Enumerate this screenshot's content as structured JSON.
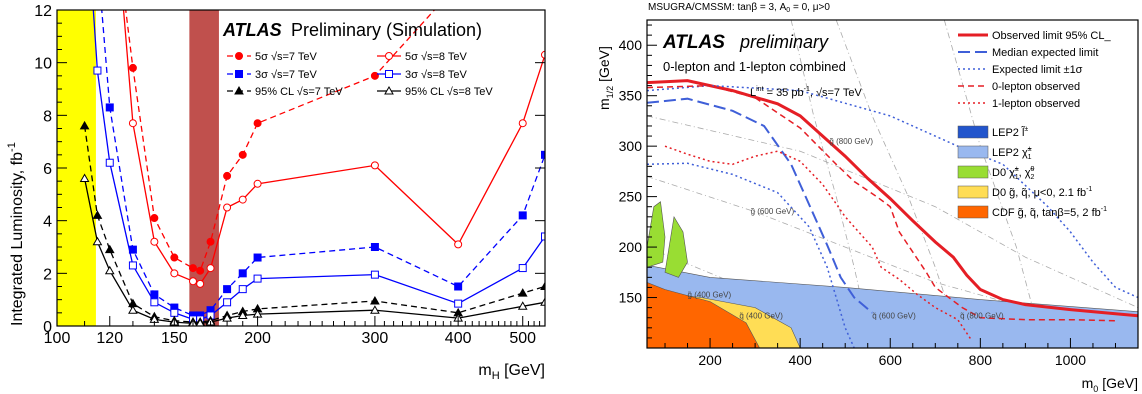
{
  "chart_data": [
    {
      "type": "line",
      "log_x": true,
      "title": "ATLAS",
      "title_suffix": "Preliminary (Simulation)",
      "xlabel": "m",
      "xlabel_sub": "H",
      "xlabel_unit": "[GeV]",
      "ylabel": "Integrated Luminosity, fb",
      "ylabel_sup": "-1",
      "xlim": [
        100,
        540
      ],
      "ylim": [
        0,
        12
      ],
      "x_ticks": [
        100,
        120,
        150,
        200,
        300,
        400,
        500
      ],
      "y_ticks": [
        0,
        2,
        4,
        6,
        8,
        10,
        12
      ],
      "shaded_regions": [
        {
          "from": 100,
          "to": 114.4,
          "color": "#ffff00"
        },
        {
          "from": 158,
          "to": 175,
          "color": "#c0504d"
        }
      ],
      "series": [
        {
          "name": "5σ √s=7 TeV",
          "color": "#ff0000",
          "dash": "dash",
          "marker": "circle-filled",
          "points": [
            [
              124,
              14
            ],
            [
              130,
              9.8
            ],
            [
              140,
              4.1
            ],
            [
              150,
              2.6
            ],
            [
              160,
              2.2
            ],
            [
              164,
              2.1
            ],
            [
              170,
              3.2
            ],
            [
              180,
              5.7
            ],
            [
              190,
              6.5
            ],
            [
              200,
              7.7
            ],
            [
              300,
              9.5
            ],
            [
              400,
              13
            ],
            [
              500,
              14
            ]
          ]
        },
        {
          "name": "5σ √s=8 TeV",
          "color": "#ff0000",
          "dash": "solid",
          "marker": "circle-open",
          "points": [
            [
              124,
              14
            ],
            [
              130,
              7.7
            ],
            [
              140,
              3.2
            ],
            [
              150,
              2.0
            ],
            [
              160,
              1.7
            ],
            [
              164,
              1.6
            ],
            [
              170,
              2.2
            ],
            [
              180,
              4.5
            ],
            [
              190,
              4.8
            ],
            [
              200,
              5.4
            ],
            [
              300,
              6.1
            ],
            [
              400,
              3.1
            ],
            [
              500,
              7.7
            ],
            [
              540,
              10.3
            ]
          ]
        },
        {
          "name": "3σ √s=7 TeV",
          "color": "#0000ff",
          "dash": "dash",
          "marker": "square-filled",
          "points": [
            [
              115,
              14
            ],
            [
              120,
              8.3
            ],
            [
              130,
              2.9
            ],
            [
              140,
              1.2
            ],
            [
              150,
              0.7
            ],
            [
              160,
              0.4
            ],
            [
              164,
              0.4
            ],
            [
              170,
              0.6
            ],
            [
              180,
              1.4
            ],
            [
              190,
              2.0
            ],
            [
              200,
              2.6
            ],
            [
              300,
              3.0
            ],
            [
              400,
              1.5
            ],
            [
              500,
              4.2
            ],
            [
              540,
              6.5
            ]
          ]
        },
        {
          "name": "3σ √s=8 TeV",
          "color": "#0000ff",
          "dash": "solid",
          "marker": "square-open",
          "points": [
            [
              112,
              14
            ],
            [
              115,
              9.7
            ],
            [
              120,
              6.2
            ],
            [
              130,
              2.3
            ],
            [
              140,
              0.9
            ],
            [
              150,
              0.5
            ],
            [
              160,
              0.25
            ],
            [
              164,
              0.25
            ],
            [
              170,
              0.4
            ],
            [
              180,
              0.9
            ],
            [
              190,
              1.4
            ],
            [
              200,
              1.8
            ],
            [
              300,
              1.95
            ],
            [
              400,
              0.85
            ],
            [
              500,
              2.2
            ],
            [
              540,
              3.4
            ]
          ]
        },
        {
          "name": "95% CL √s=7 TeV",
          "color": "#000000",
          "dash": "dash",
          "marker": "triangle-filled",
          "points": [
            [
              110,
              7.6
            ],
            [
              115,
              4.2
            ],
            [
              120,
              2.9
            ],
            [
              130,
              0.85
            ],
            [
              140,
              0.35
            ],
            [
              150,
              0.2
            ],
            [
              160,
              0.15
            ],
            [
              164,
              0.15
            ],
            [
              170,
              0.2
            ],
            [
              180,
              0.4
            ],
            [
              190,
              0.55
            ],
            [
              200,
              0.65
            ],
            [
              300,
              0.95
            ],
            [
              400,
              0.5
            ],
            [
              500,
              1.25
            ],
            [
              540,
              1.5
            ]
          ]
        },
        {
          "name": "95% CL √s=8 TeV",
          "color": "#000000",
          "dash": "solid",
          "marker": "triangle-open",
          "points": [
            [
              110,
              5.6
            ],
            [
              115,
              3.2
            ],
            [
              120,
              2.1
            ],
            [
              130,
              0.6
            ],
            [
              140,
              0.25
            ],
            [
              150,
              0.15
            ],
            [
              160,
              0.1
            ],
            [
              164,
              0.1
            ],
            [
              170,
              0.15
            ],
            [
              180,
              0.3
            ],
            [
              190,
              0.4
            ],
            [
              200,
              0.45
            ],
            [
              300,
              0.6
            ],
            [
              400,
              0.3
            ],
            [
              500,
              0.75
            ],
            [
              540,
              0.9
            ]
          ]
        }
      ]
    },
    {
      "type": "line",
      "title": "ATLAS",
      "title_suffix": "preliminary",
      "header": "MSUGRA/CMSSM: tanβ = 3, A",
      "header_sub": "0",
      "header_rest": " = 0, μ>0",
      "subtitle": "0-lepton and 1-lepton combined",
      "lumi_text_a": "L",
      "lumi_sup": "int",
      "lumi_text_b": " = 35 pb",
      "lumi_sup2": "-1",
      "lumi_text_c": ", √s=7 TeV",
      "xlabel": "m",
      "xlabel_sub": "0",
      "xlabel_unit": "[GeV]",
      "ylabel": "m",
      "ylabel_sub": "1/2",
      "ylabel_unit": "[GeV]",
      "xlim": [
        60,
        1150
      ],
      "ylim": [
        100,
        425
      ],
      "x_ticks": [
        200,
        400,
        600,
        800,
        1000
      ],
      "y_ticks": [
        150,
        200,
        250,
        300,
        350,
        400
      ],
      "contour_labels": [
        {
          "text": "g̃ (800 GeV)",
          "x": 465,
          "y": 302
        },
        {
          "text": "g̃ (600 GeV)",
          "x": 290,
          "y": 233
        },
        {
          "text": "g̃ (400 GeV)",
          "x": 150,
          "y": 150
        },
        {
          "text": "q̃ (400 GeV)",
          "x": 265,
          "y": 129
        },
        {
          "text": "q̃ (600 GeV)",
          "x": 560,
          "y": 129
        },
        {
          "text": "q̃ (800 GeV)",
          "x": 755,
          "y": 129
        }
      ],
      "legend_lines": [
        {
          "label": "Observed limit 95% CL_",
          "color": "#e51e25",
          "dash": "solid",
          "width": 3
        },
        {
          "label": "Median expected limit",
          "color": "#3f5fd8",
          "dash": "longdash",
          "width": 2
        },
        {
          "label": "Expected limit ±1σ",
          "color": "#3f5fd8",
          "dash": "dot",
          "width": 1.5
        },
        {
          "label": "0-lepton observed",
          "color": "#e51e25",
          "dash": "dash",
          "width": 1.5
        },
        {
          "label": "1-lepton observed",
          "color": "#e51e25",
          "dash": "dot",
          "width": 1.5
        }
      ],
      "legend_boxes": [
        {
          "label": "LEP2 l̃",
          "sup": "±",
          "color": "#2255cc"
        },
        {
          "label": "LEP2 χ̃",
          "sup": "±",
          "sub": "1",
          "color": "#99b8ef"
        },
        {
          "label": "D0 χ̃",
          "sup": "±",
          "sub": "1",
          "extra": ", χ̃",
          "extra_sup": "0",
          "extra_sub": "2",
          "color": "#99dd33"
        },
        {
          "label": "D0 g̃, q̃, μ<0, 2.1 fb",
          "sup": "-1",
          "color": "#ffdd55"
        },
        {
          "label": "CDF g̃, q̃, tanβ=5, 2 fb",
          "sup": "-1",
          "color": "#ff6600"
        }
      ],
      "series": [
        {
          "name": "Observed limit 95% CL_",
          "color": "#e51e25",
          "width": 3,
          "dash": "solid",
          "points": [
            [
              60,
              363
            ],
            [
              150,
              365
            ],
            [
              250,
              355
            ],
            [
              350,
              342
            ],
            [
              400,
              330
            ],
            [
              450,
              310
            ],
            [
              500,
              290
            ],
            [
              550,
              268
            ],
            [
              600,
              248
            ],
            [
              650,
              226
            ],
            [
              700,
              205
            ],
            [
              740,
              190
            ],
            [
              770,
              172
            ],
            [
              800,
              158
            ],
            [
              850,
              148
            ],
            [
              900,
              143
            ],
            [
              1000,
              138
            ],
            [
              1100,
              134
            ],
            [
              1150,
              132
            ]
          ]
        },
        {
          "name": "Median expected limit",
          "color": "#3f5fd8",
          "width": 2,
          "dash": "longdash",
          "points": [
            [
              60,
              343
            ],
            [
              150,
              347
            ],
            [
              250,
              335
            ],
            [
              320,
              320
            ],
            [
              380,
              282
            ],
            [
              410,
              252
            ],
            [
              440,
              222
            ],
            [
              460,
              202
            ],
            [
              490,
              170
            ],
            [
              520,
              150
            ],
            [
              560,
              135
            ]
          ]
        },
        {
          "name": "Expected limit ±1σ (upper)",
          "color": "#3f5fd8",
          "width": 1.5,
          "dash": "dot",
          "points": [
            [
              60,
              355
            ],
            [
              200,
              360
            ],
            [
              400,
              355
            ],
            [
              600,
              330
            ],
            [
              750,
              300
            ],
            [
              850,
              282
            ],
            [
              950,
              240
            ],
            [
              1000,
              215
            ],
            [
              1050,
              185
            ],
            [
              1100,
              160
            ],
            [
              1150,
              150
            ]
          ]
        },
        {
          "name": "Expected limit ±1σ (lower)",
          "color": "#3f5fd8",
          "width": 1.5,
          "dash": "dot",
          "points": [
            [
              60,
              282
            ],
            [
              150,
              283
            ],
            [
              250,
              272
            ],
            [
              350,
              254
            ],
            [
              420,
              220
            ],
            [
              460,
              180
            ],
            [
              480,
              150
            ],
            [
              500,
              120
            ],
            [
              520,
              100
            ]
          ]
        },
        {
          "name": "0-lepton observed",
          "color": "#e51e25",
          "width": 1.5,
          "dash": "dash",
          "points": [
            [
              60,
              358
            ],
            [
              200,
              360
            ],
            [
              300,
              348
            ],
            [
              400,
              318
            ],
            [
              480,
              282
            ],
            [
              520,
              265
            ],
            [
              570,
              250
            ],
            [
              600,
              240
            ],
            [
              620,
              215
            ],
            [
              650,
              195
            ],
            [
              680,
              175
            ],
            [
              700,
              160
            ],
            [
              730,
              150
            ],
            [
              760,
              140
            ],
            [
              800,
              130
            ],
            [
              900,
              128
            ],
            [
              1000,
              128
            ],
            [
              1100,
              127
            ]
          ]
        },
        {
          "name": "1-lepton observed",
          "color": "#e51e25",
          "width": 1.5,
          "dash": "dot",
          "points": [
            [
              100,
              300
            ],
            [
              150,
              292
            ],
            [
              200,
              285
            ],
            [
              250,
              282
            ],
            [
              300,
              290
            ],
            [
              350,
              295
            ],
            [
              400,
              285
            ],
            [
              450,
              262
            ],
            [
              500,
              230
            ],
            [
              540,
              210
            ],
            [
              560,
              200
            ],
            [
              580,
              180
            ],
            [
              620,
              168
            ],
            [
              660,
              153
            ],
            [
              700,
              140
            ],
            [
              750,
              128
            ],
            [
              780,
              108
            ]
          ]
        }
      ]
    }
  ]
}
